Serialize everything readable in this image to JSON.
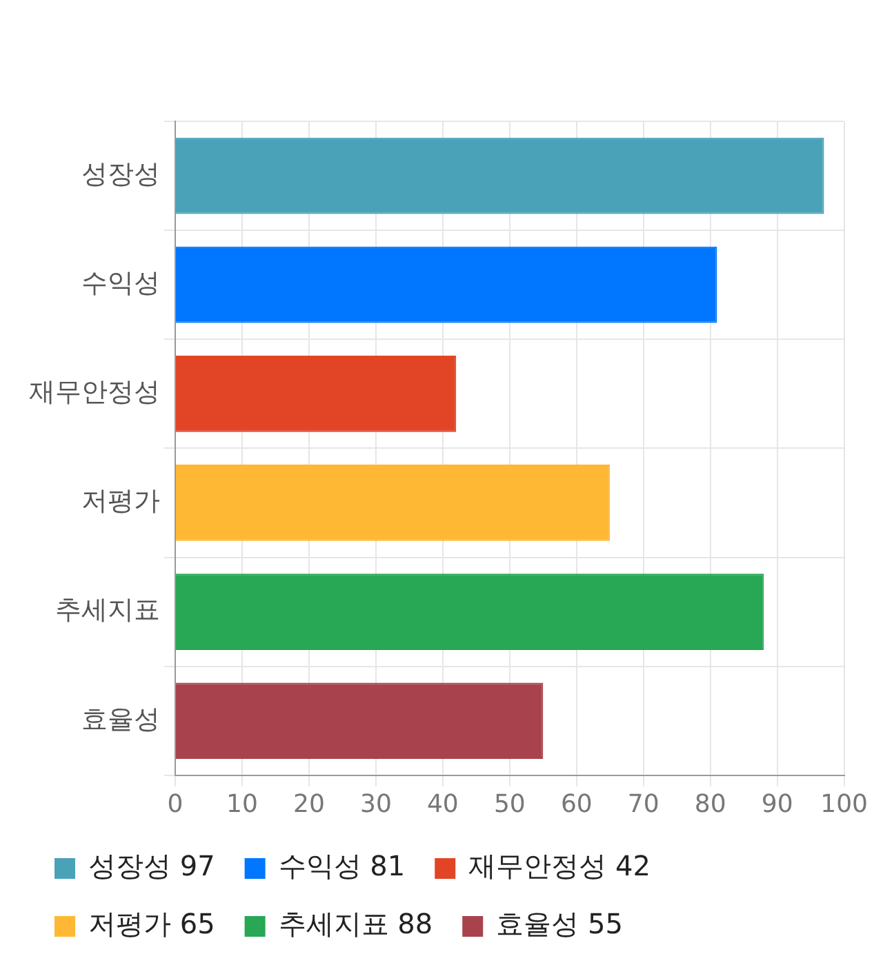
{
  "chart_data": {
    "type": "bar",
    "orientation": "horizontal",
    "stacked": true,
    "categories": [
      "성장성",
      "수익성",
      "재무안정성",
      "저평가",
      "추세지표",
      "효율성"
    ],
    "series": [
      {
        "name": "성장성 97",
        "color": "#4aa2b9",
        "values": [
          97,
          null,
          null,
          null,
          null,
          null
        ]
      },
      {
        "name": "수익성 81",
        "color": "#0077fe",
        "values": [
          null,
          81,
          null,
          null,
          null,
          null
        ]
      },
      {
        "name": "재무안정성 42",
        "color": "#e24526",
        "values": [
          null,
          null,
          42,
          null,
          null,
          null
        ]
      },
      {
        "name": "저평가 65",
        "color": "#feb833",
        "values": [
          null,
          null,
          null,
          65,
          null,
          null
        ]
      },
      {
        "name": "추세지표 88",
        "color": "#28a754",
        "values": [
          null,
          null,
          null,
          null,
          88,
          null
        ]
      },
      {
        "name": "효율성 55",
        "color": "#a8434e",
        "values": [
          null,
          null,
          null,
          null,
          null,
          55
        ]
      }
    ],
    "xlim": [
      0,
      100
    ],
    "xticks": [
      0,
      10,
      20,
      30,
      40,
      50,
      60,
      70,
      80,
      90,
      100
    ],
    "grid": true,
    "legend": "bottom"
  }
}
